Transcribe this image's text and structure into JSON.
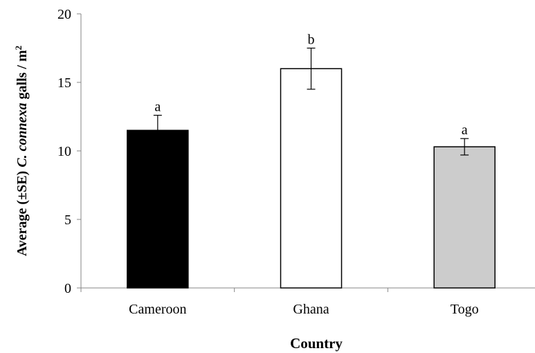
{
  "chart_data": {
    "type": "bar",
    "title": "",
    "xlabel": "Country",
    "ylabel": {
      "prefix": "Average (±SE) ",
      "species": "C. connexa",
      "suffix": " galls / m",
      "superscript": "2"
    },
    "categories": [
      "Cameroon",
      "Ghana",
      "Togo"
    ],
    "values": [
      11.5,
      16.0,
      10.3
    ],
    "errors": [
      1.1,
      1.5,
      0.6
    ],
    "significance": [
      "a",
      "b",
      "a"
    ],
    "bar_fill": [
      "#000000",
      "#ffffff",
      "#cccccc"
    ],
    "bar_stroke": "#000000",
    "ylim": [
      0,
      20
    ],
    "yticks": [
      0,
      5,
      10,
      15,
      20
    ],
    "grid": false,
    "legend": "none"
  }
}
